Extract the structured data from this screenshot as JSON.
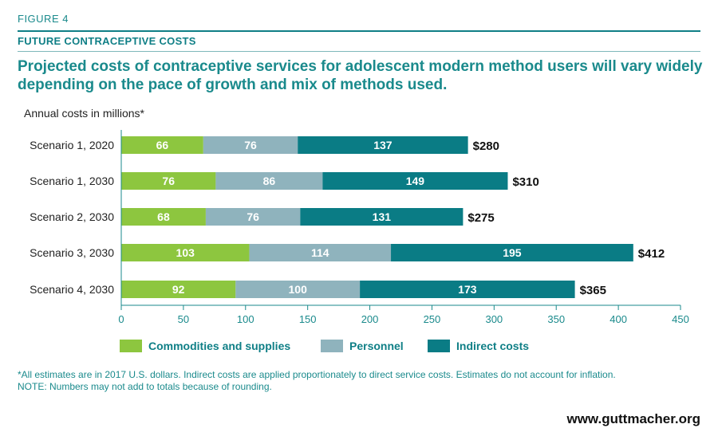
{
  "figure_label": "FIGURE 4",
  "section_title": "FUTURE CONTRACEPTIVE COSTS",
  "headline": "Projected costs of contraceptive services for adolescent modern method users will vary widely depending on the pace of growth and mix of methods used.",
  "units_label": "Annual costs in millions*",
  "footnote_1": "*All estimates are in 2017 U.S. dollars. Indirect costs are applied proportionately to direct service costs. Estimates do not account for inflation.",
  "footnote_2": "NOTE: Numbers may not add to totals because of rounding.",
  "source": "www.guttmacher.org",
  "colors": {
    "commodities": "#8dc63f",
    "personnel": "#8fb3bd",
    "indirect": "#0a7c85",
    "axis": "#1a8a8c"
  },
  "chart_data": {
    "type": "bar",
    "orientation": "horizontal",
    "stacked": true,
    "categories": [
      "Scenario 1, 2020",
      "Scenario 1, 2030",
      "Scenario 2, 2030",
      "Scenario 3, 2030",
      "Scenario 4, 2030"
    ],
    "series": [
      {
        "name": "Commodities and supplies",
        "values": [
          66,
          76,
          68,
          103,
          92
        ]
      },
      {
        "name": "Personnel",
        "values": [
          76,
          86,
          76,
          114,
          100
        ]
      },
      {
        "name": "Indirect costs",
        "values": [
          137,
          149,
          131,
          195,
          173
        ]
      }
    ],
    "totals": [
      "$280",
      "$310",
      "$275",
      "$412",
      "$365"
    ],
    "xlim": [
      0,
      450
    ],
    "xticks": [
      0,
      50,
      100,
      150,
      200,
      250,
      300,
      350,
      400,
      450
    ],
    "ylabel": "Annual costs in millions*",
    "grid": false,
    "legend_position": "bottom"
  }
}
